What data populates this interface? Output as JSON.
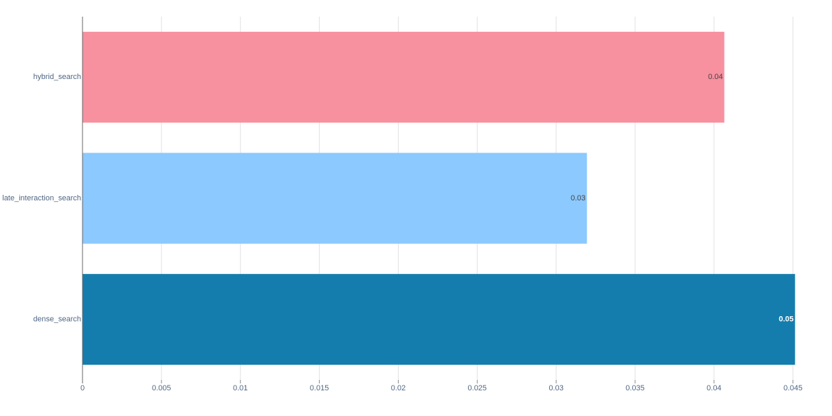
{
  "chart_data": {
    "type": "hbar",
    "categories": [
      "hybrid_search",
      "late_interaction_search",
      "dense_search"
    ],
    "values": [
      0.04065,
      0.03195,
      0.04513
    ],
    "value_labels": [
      "0.04",
      "0.03",
      "0.05"
    ],
    "colors": [
      "#f7909f",
      "#8bc9fe",
      "#147dad"
    ],
    "xlim": [
      0,
      0.0451
    ],
    "xticks": [
      0,
      0.005,
      0.01,
      0.015,
      0.02,
      0.025,
      0.03,
      0.035,
      0.04,
      0.045
    ],
    "grid": true
  }
}
